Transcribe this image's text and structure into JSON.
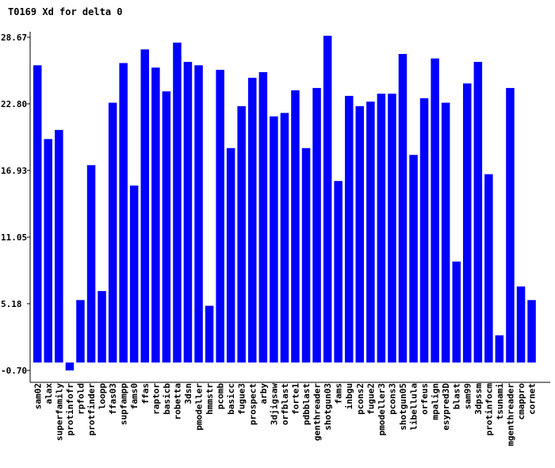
{
  "chart_data": {
    "type": "bar",
    "title": "T0169 Xd for delta 0",
    "xlabel": "",
    "ylabel": "",
    "ylim": [
      -0.7,
      28.67
    ],
    "yticks": [
      "28.67",
      "22.80",
      "16.93",
      "11.05",
      "5.18",
      "-0.70"
    ],
    "bar_color": "#0000ff",
    "grid": false,
    "categories": [
      "sam02",
      "alax",
      "superfamily",
      "protinfofr",
      "rpfold",
      "protfinder",
      "loopp",
      "ffas03",
      "supfampp",
      "fams0",
      "ffas",
      "raptor",
      "basicb",
      "robetta",
      "3dsn",
      "pmodeller",
      "hmmstr",
      "pcomb",
      "basicc",
      "fugue3",
      "prospect",
      "arby",
      "3djigsaw",
      "orfblast",
      "forte1",
      "pdbblast",
      "genthreader",
      "shotgun03",
      "fams",
      "inbgu",
      "pcons2",
      "fugue2",
      "pmodeller3",
      "pcons3",
      "shotgun05",
      "libellula",
      "orfeus",
      "mpalign",
      "esypred3D",
      "blast",
      "sam99",
      "3dpssm",
      "protinfocm",
      "tsunami",
      "mgenthreader",
      "cmappro",
      "cornet"
    ],
    "values": [
      26.2,
      19.7,
      20.5,
      -0.7,
      5.5,
      17.4,
      6.3,
      22.9,
      26.4,
      15.6,
      27.6,
      26.0,
      23.9,
      28.2,
      26.5,
      26.2,
      5.0,
      25.8,
      18.9,
      22.6,
      25.1,
      25.6,
      21.7,
      22.0,
      24.0,
      18.9,
      24.2,
      28.8,
      16.0,
      23.5,
      22.6,
      23.0,
      23.7,
      23.7,
      27.2,
      18.3,
      23.3,
      26.8,
      22.9,
      8.9,
      24.6,
      26.5,
      16.6,
      2.4,
      24.2,
      6.7,
      5.5
    ]
  }
}
